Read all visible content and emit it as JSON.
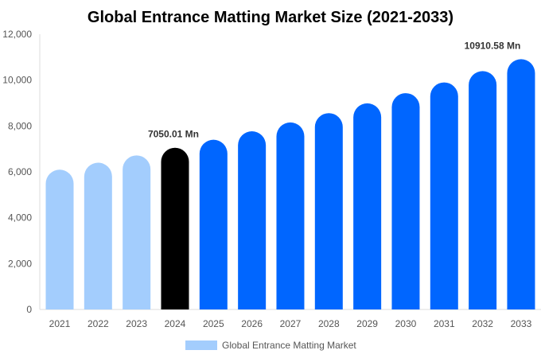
{
  "chart_data": {
    "type": "bar",
    "title": "Global Entrance Matting Market Size (2021-2033)",
    "categories": [
      "2021",
      "2022",
      "2023",
      "2024",
      "2025",
      "2026",
      "2027",
      "2028",
      "2029",
      "2030",
      "2031",
      "2032",
      "2033"
    ],
    "series": [
      {
        "name": "Global Entrance Matting Market",
        "values": [
          6095,
          6398,
          6716,
          7050.01,
          7400,
          7768,
          8154,
          8559,
          8985,
          9431,
          9900,
          10392,
          10910.58
        ]
      }
    ],
    "ylim": [
      0,
      12000
    ],
    "yticks": [
      "0",
      "2,000",
      "4,000",
      "6,000",
      "8,000",
      "10,000",
      "12,000"
    ],
    "data_labels": {
      "3": "7050.01 Mn",
      "12": "10910.58 Mn"
    },
    "colors": {
      "historic": "#a3cdfd",
      "base_year": "#000000",
      "forecast": "#0066ff"
    },
    "legend_position": "bottom",
    "grid": false
  }
}
